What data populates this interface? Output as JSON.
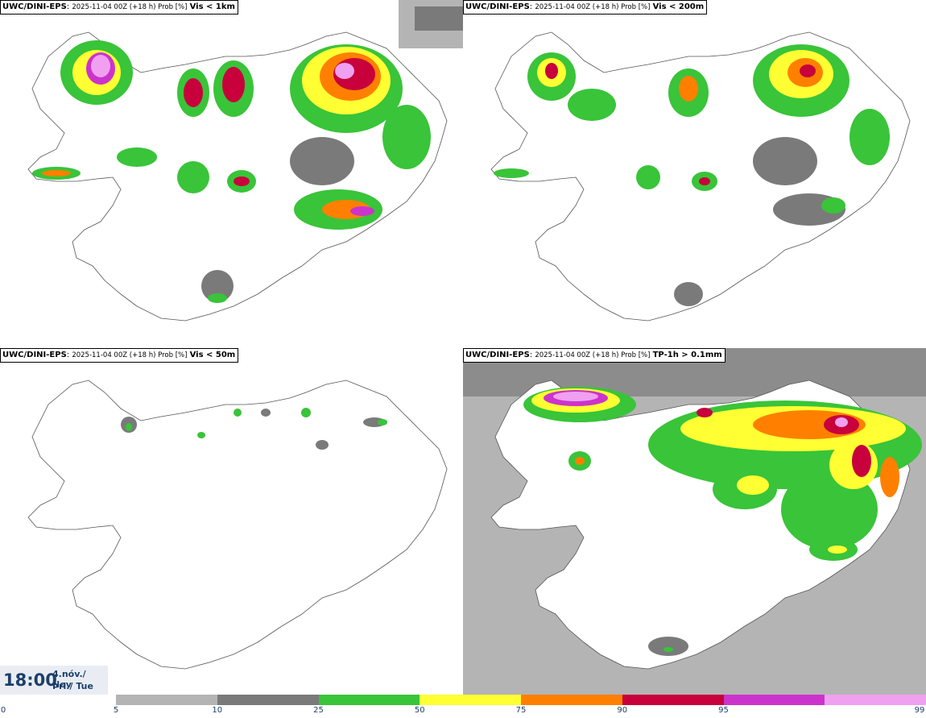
{
  "panels": [
    {
      "model": "UWC/DINI-EPS",
      "run": "2025-11-04 00Z (+18 h) Prob [%]",
      "variable": "Vis < 1km"
    },
    {
      "model": "UWC/DINI-EPS",
      "run": "2025-11-04 00Z (+18 h) Prob [%]",
      "variable": "Vis < 200m"
    },
    {
      "model": "UWC/DINI-EPS",
      "run": "2025-11-04 00Z (+18 h) Prob [%]",
      "variable": "Vis < 50m"
    },
    {
      "model": "UWC/DINI-EPS",
      "run": "2025-11-04 00Z (+18 h) Prob [%]",
      "variable": "TP-1h > 0.1mm"
    }
  ],
  "valid_time": {
    "clock": "18:00",
    "date_line1": "4.nóv./ Nov",
    "date_line2": "Þri./ Tue"
  },
  "colorbar": {
    "bins": [
      {
        "from": 5,
        "to": 10,
        "color": "#b4b4b4"
      },
      {
        "from": 10,
        "to": 25,
        "color": "#7a7a7a"
      },
      {
        "from": 25,
        "to": 50,
        "color": "#39c439"
      },
      {
        "from": 50,
        "to": 75,
        "color": "#ffff33"
      },
      {
        "from": 75,
        "to": 90,
        "color": "#ff8000"
      },
      {
        "from": 90,
        "to": 95,
        "color": "#c8003c"
      },
      {
        "from": 95,
        "to": 99,
        "color": "#cc33cc"
      },
      {
        "from": 99,
        "to": 100,
        "color": "#f0a0f0"
      }
    ],
    "tick_labels": [
      "0",
      "5",
      "10",
      "25",
      "50",
      "75",
      "90",
      "95",
      "99"
    ]
  },
  "colors": {
    "gray_light": "#b4b4b4",
    "gray_dark": "#7a7a7a",
    "green": "#39c439",
    "yellow": "#ffff33",
    "orange": "#ff8000",
    "red": "#c8003c",
    "magenta": "#cc33cc",
    "pink": "#f0a0f0"
  }
}
